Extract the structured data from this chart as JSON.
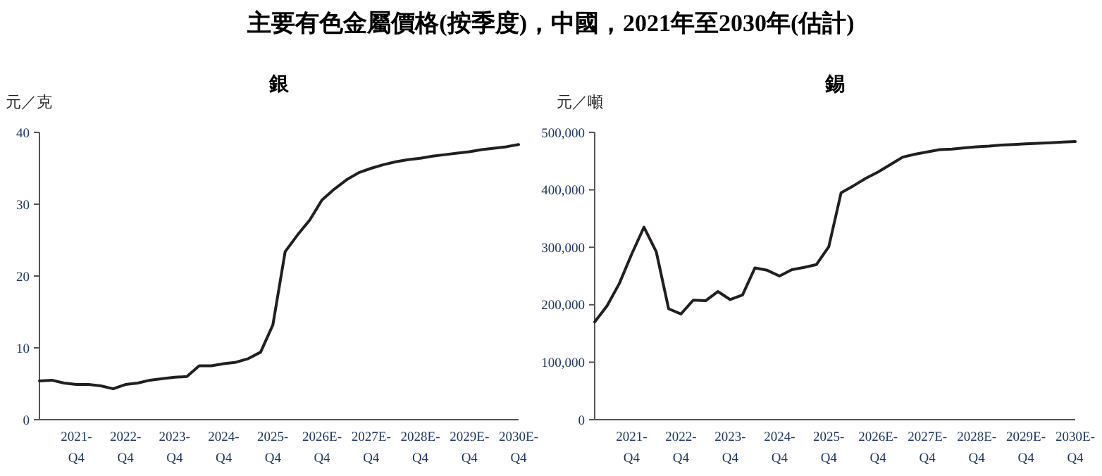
{
  "chart_data": [
    {
      "type": "line",
      "title": "主要有色金屬價格(按季度)，中國，2021年至2030年(估計)",
      "subtitle": "銀",
      "ylabel": "元／克",
      "color": "#231f20",
      "categories": [
        null,
        null,
        null,
        "2021-Q4",
        null,
        null,
        null,
        "2022-Q4",
        null,
        null,
        null,
        "2023-Q4",
        null,
        null,
        null,
        "2024-Q4",
        null,
        null,
        null,
        "2025-Q4",
        null,
        null,
        null,
        "2026E-Q4",
        null,
        null,
        null,
        "2027E-Q4",
        null,
        null,
        null,
        "2028E-Q4",
        null,
        null,
        null,
        "2029E-Q4",
        null,
        null,
        null,
        "2030E-Q4"
      ],
      "values": [
        5.4,
        5.5,
        5.1,
        4.9,
        4.9,
        4.7,
        4.3,
        4.9,
        5.1,
        5.5,
        5.7,
        5.9,
        6.0,
        7.5,
        7.5,
        7.8,
        8.0,
        8.5,
        9.4,
        13.2,
        23.4,
        25.7,
        27.8,
        30.6,
        32.1,
        33.4,
        34.4,
        35.0,
        35.5,
        35.9,
        36.2,
        36.4,
        36.7,
        36.9,
        37.1,
        37.3,
        37.6,
        37.8,
        38.0,
        38.3
      ],
      "ylim": [
        0,
        40
      ],
      "yticks": [
        0,
        10,
        20,
        30,
        40
      ]
    },
    {
      "type": "line",
      "subtitle": "錫",
      "ylabel": "元／噸",
      "color": "#231f20",
      "categories": [
        null,
        null,
        null,
        "2021-Q4",
        null,
        null,
        null,
        "2022-Q4",
        null,
        null,
        null,
        "2023-Q4",
        null,
        null,
        null,
        "2024-Q4",
        null,
        null,
        null,
        "2025-Q4",
        null,
        null,
        null,
        "2026E-Q4",
        null,
        null,
        null,
        "2027E-Q4",
        null,
        null,
        null,
        "2028E-Q4",
        null,
        null,
        null,
        "2029E-Q4",
        null,
        null,
        null,
        "2030E-Q4"
      ],
      "values": [
        170000,
        198000,
        237000,
        288000,
        335000,
        292000,
        193000,
        184000,
        208000,
        207000,
        223000,
        209000,
        217000,
        264000,
        260000,
        250000,
        261000,
        265000,
        270000,
        301000,
        395000,
        407000,
        420000,
        431000,
        444000,
        457000,
        462000,
        466000,
        470000,
        471000,
        473000,
        475000,
        476000,
        478000,
        479000,
        480000,
        481000,
        482000,
        483000,
        484000
      ],
      "ylim": [
        0,
        500000
      ],
      "yticks": [
        0,
        {
          "value": 100000,
          "label": "100,000"
        },
        {
          "value": 200000,
          "label": "200,000"
        },
        {
          "value": 300000,
          "label": "300,000"
        },
        {
          "value": 400000,
          "label": "400,000"
        },
        {
          "value": 500000,
          "label": "500,000"
        }
      ]
    }
  ]
}
